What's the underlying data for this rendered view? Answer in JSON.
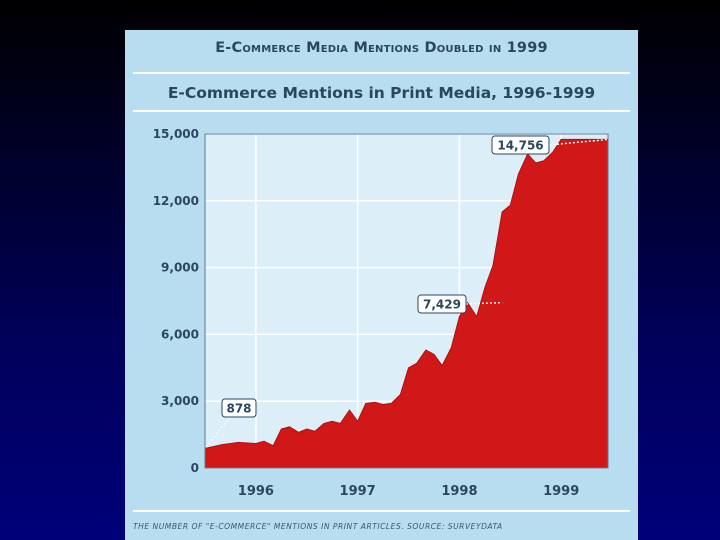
{
  "headline": "E-Commerce Media Mentions Doubled in 1999",
  "footnote": "The number of \"e-commerce\" mentions in print articles. Source: Surveydata",
  "colors": {
    "slide_background": "#000058",
    "card_background": "#b8ddf0",
    "plot_background": "#dceef8",
    "area_fill": "#d01818",
    "text": "#2c4660"
  },
  "chart_data": {
    "type": "area",
    "title": "E-Commerce Mentions in Print Media, 1996-1999",
    "xlabel": "",
    "ylabel": "",
    "ylim": [
      0,
      15000
    ],
    "yticks": [
      0,
      3000,
      6000,
      9000,
      12000,
      15000
    ],
    "ytick_labels": [
      "0",
      "3,000",
      "6,000",
      "9,000",
      "12,000",
      "15,000"
    ],
    "xlim": [
      1995.5,
      1999.46
    ],
    "xtick_labels": [
      "1996",
      "1997",
      "1998",
      "1999"
    ],
    "xtick_positions": [
      1996,
      1997,
      1998,
      1999
    ],
    "grid": true,
    "series": [
      {
        "x": [
          1995.5,
          1995.67,
          1995.83,
          1996.0,
          1996.08,
          1996.17,
          1996.25,
          1996.33,
          1996.42,
          1996.5,
          1996.58,
          1996.67,
          1996.75,
          1996.83,
          1996.92,
          1997.0,
          1997.08,
          1997.17,
          1997.25,
          1997.33,
          1997.42,
          1997.5,
          1997.58,
          1997.67,
          1997.75,
          1997.83,
          1997.92,
          1998.0,
          1998.08,
          1998.17,
          1998.25,
          1998.33,
          1998.42,
          1998.5,
          1998.58,
          1998.67,
          1998.75,
          1998.83,
          1998.92,
          1999.0,
          1999.08,
          1999.17,
          1999.25,
          1999.33,
          1999.46
        ],
        "values": [
          878,
          1050,
          1150,
          1100,
          1200,
          1000,
          1750,
          1850,
          1600,
          1750,
          1650,
          2000,
          2100,
          2000,
          2600,
          2100,
          2900,
          2950,
          2850,
          2900,
          3300,
          4500,
          4700,
          5300,
          5100,
          4600,
          5400,
          6800,
          7429,
          6800,
          8100,
          9100,
          11500,
          11800,
          13200,
          14100,
          13700,
          13800,
          14200,
          14756,
          14756,
          14756,
          14756,
          14756,
          14756
        ]
      }
    ],
    "annotations": [
      {
        "label": "878",
        "x": 1995.5,
        "y": 878
      },
      {
        "label": "7,429",
        "x": 1998.42,
        "y": 7429
      },
      {
        "label": "14,756",
        "x": 1999.46,
        "y": 14756
      }
    ]
  }
}
